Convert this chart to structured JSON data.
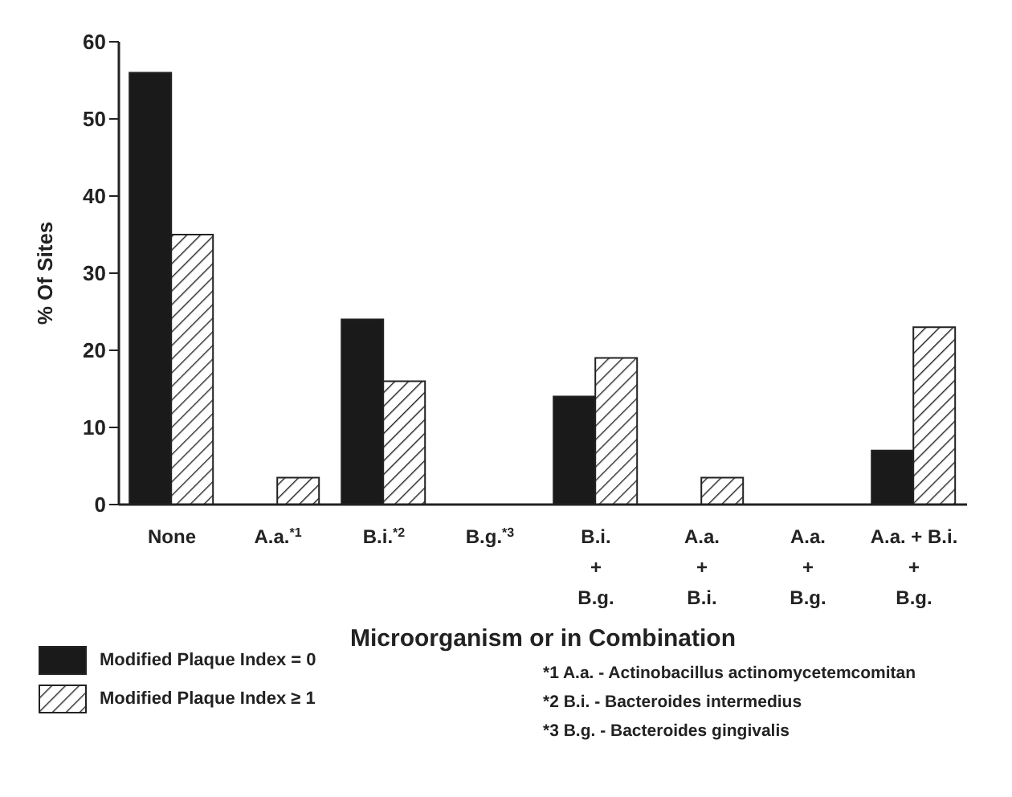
{
  "chart_data": {
    "type": "bar",
    "xlabel": "Microorganism or in Combination",
    "ylabel": "% Of Sites",
    "categories": [
      "None",
      "A.a.$^{*1}$",
      "B.i.$^{*2}$",
      "B.g.$^{*3}$",
      "B.i.\n+\nB.g.",
      "A.a.\n+\nB.i.",
      "A.a.\n+\nB.g.",
      "A.a. + B.i.\n+\nB.g."
    ],
    "series": [
      {
        "name": "Modified Plaque Index = 0",
        "color": "#1a1a1a",
        "values": [
          56,
          0,
          24,
          0,
          14,
          0,
          0,
          7
        ]
      },
      {
        "name": "Modified Plaque Index ≥ 1",
        "color": "#222222",
        "values": [
          35,
          3.5,
          16,
          0,
          19,
          3.5,
          0,
          23
        ]
      }
    ],
    "ylim": [
      0,
      60
    ],
    "yticks": [
      0,
      10,
      20,
      30,
      40,
      50,
      60
    ],
    "grid": false,
    "legend": "bottom left",
    "annotations": [
      "*1 A.a. - Actinobacillus actinomycetemcomitan",
      "*2 B.i. - Bacteroides intermedius",
      "*3 B.g. - Bacteroides gingivalis"
    ]
  }
}
